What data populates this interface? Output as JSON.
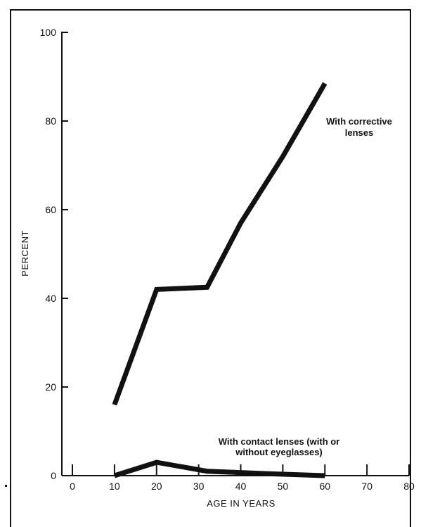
{
  "chart_data": {
    "type": "line",
    "xlabel": "AGE IN YEARS",
    "ylabel": "PERCENT",
    "xlim": [
      0,
      80
    ],
    "ylim": [
      0,
      100
    ],
    "x_ticks": [
      "0",
      "10",
      "20",
      "30",
      "40",
      "50",
      "60",
      "70",
      "80"
    ],
    "y_ticks": [
      "0",
      "20",
      "40",
      "60",
      "80",
      "100"
    ],
    "grid": false,
    "series": [
      {
        "name": "With corrective lenses",
        "label_lines": [
          "With corrective",
          "lenses"
        ],
        "x": [
          10,
          20,
          32,
          40,
          50,
          60
        ],
        "y": [
          16,
          42,
          42.5,
          57,
          72,
          88.5
        ]
      },
      {
        "name": "With contact lenses (with or without eyeglasses)",
        "label_lines": [
          "With contact lenses (with or",
          "without eyeglasses)"
        ],
        "x": [
          10,
          20,
          32,
          45,
          60
        ],
        "y": [
          0,
          3,
          1,
          0.5,
          0
        ]
      }
    ]
  }
}
